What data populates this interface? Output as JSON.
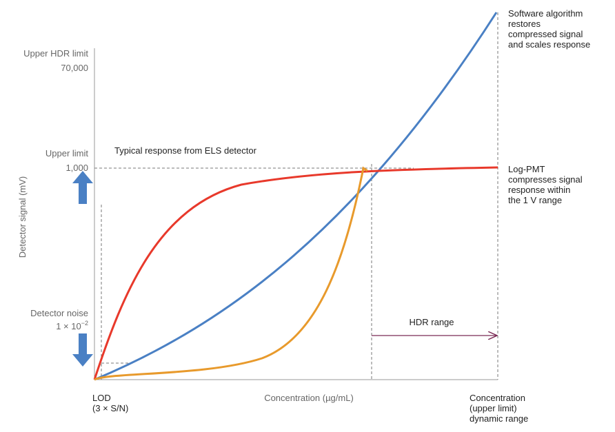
{
  "y_axis": {
    "label": "Detector signal (mV)",
    "upper_hdr": {
      "title": "Upper HDR limit",
      "value": "70,000"
    },
    "upper": {
      "title": "Upper limit",
      "value": "1,000"
    },
    "noise": {
      "title": "Detector noise",
      "base": "1 × 10",
      "exponent": "−2"
    }
  },
  "x_axis": {
    "label": "Concentration (µg/mL)",
    "lod": [
      "LOD",
      "(3 × S/N)"
    ],
    "upper": [
      "Concentration",
      "(upper limit)",
      "dynamic range"
    ]
  },
  "annotations": {
    "typical": "Typical response from ELS detector",
    "software": [
      "Software algorithm",
      "restores",
      "compressed signal",
      "and scales response"
    ],
    "log_pmt": [
      "Log-PMT",
      "compresses signal",
      "response within",
      "the 1 V range"
    ],
    "hdr_range": "HDR range"
  }
}
